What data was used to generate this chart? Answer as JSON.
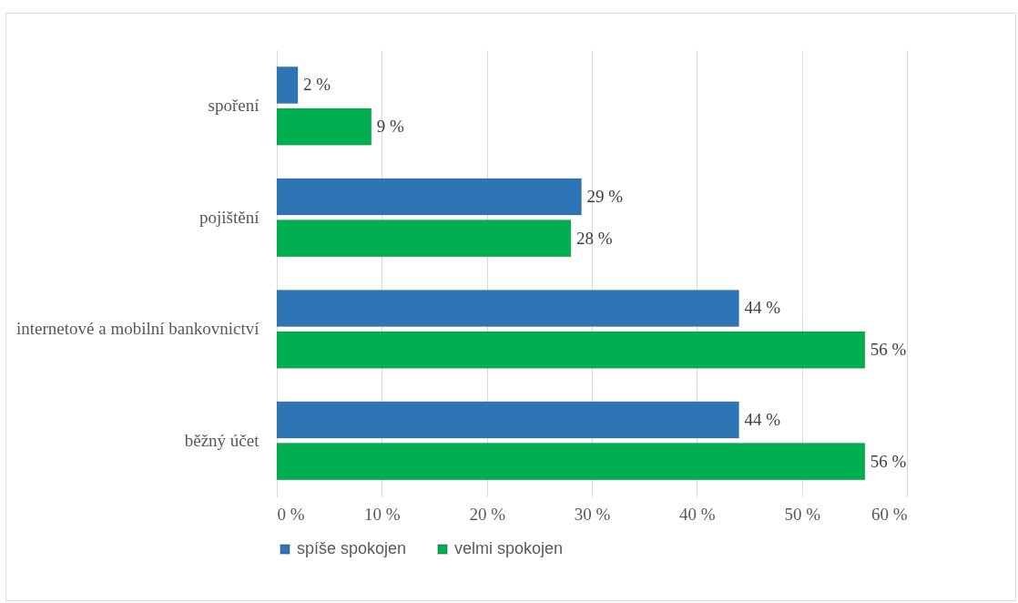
{
  "chart_data": {
    "type": "bar",
    "orientation": "horizontal",
    "categories": [
      "spoření",
      "pojištění",
      "internetové a mobilní bankovnictví",
      "běžný účet"
    ],
    "series": [
      {
        "name": "spíše spokojen",
        "color": "#2e75b6",
        "values": [
          2,
          29,
          44,
          44
        ],
        "value_labels": [
          "2 %",
          "29 %",
          "44 %",
          "44 %"
        ]
      },
      {
        "name": "velmi spokojen",
        "color": "#00b050",
        "values": [
          9,
          28,
          56,
          56
        ],
        "value_labels": [
          "9 %",
          "28 %",
          "56 %",
          "56 %"
        ]
      }
    ],
    "xlim": [
      0,
      60
    ],
    "xticks": [
      {
        "value": 0,
        "label": "0 %"
      },
      {
        "value": 10,
        "label": "10 %"
      },
      {
        "value": 20,
        "label": "20 %"
      },
      {
        "value": 30,
        "label": "30 %"
      },
      {
        "value": 40,
        "label": "40 %"
      },
      {
        "value": 50,
        "label": "50 %"
      },
      {
        "value": 60,
        "label": "60 %"
      }
    ],
    "grid": "x",
    "legend": "bottom"
  }
}
